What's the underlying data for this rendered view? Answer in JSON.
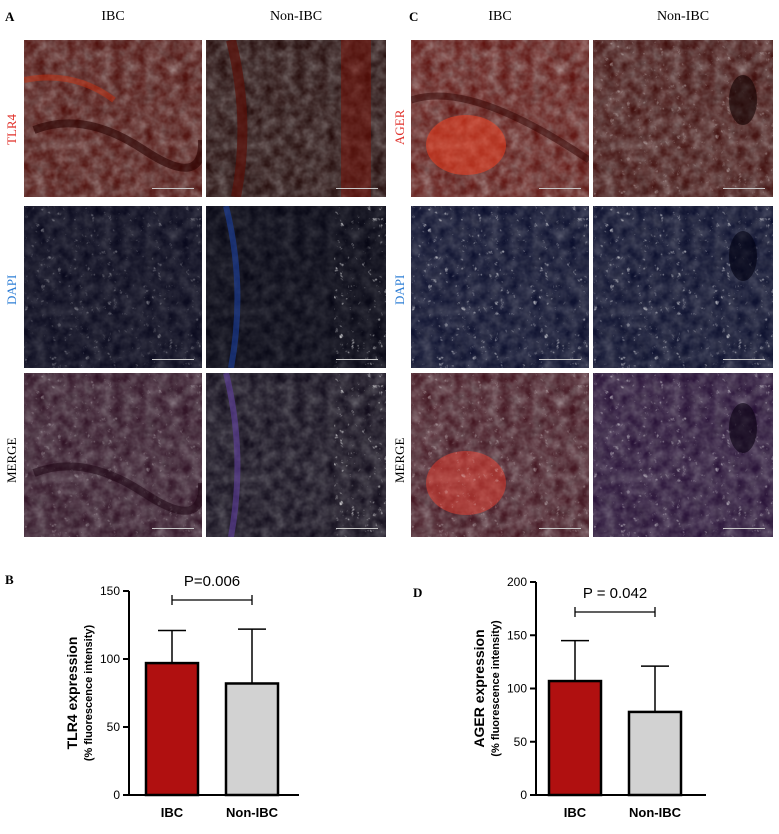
{
  "figure": {
    "panel_letters": {
      "A": "A",
      "B": "B",
      "C": "C",
      "D": "D"
    },
    "col_headers": {
      "left_ibc": "IBC",
      "left_nonibc": "Non-IBC",
      "right_ibc": "IBC",
      "right_nonibc": "Non-IBC"
    },
    "row_labels_left": {
      "marker": "TLR4",
      "dapi": "DAPI",
      "merge": "MERGE"
    },
    "row_labels_right": {
      "marker": "AGER",
      "dapi": "DAPI",
      "merge": "MERGE"
    },
    "colors": {
      "marker_label": "#e0302a",
      "dapi_label": "#2f7fd6",
      "merge_label": "#000000",
      "ibc_bar": "#b01010",
      "nonibc_bar": "#d2d2d2"
    }
  },
  "chart_data": [
    {
      "type": "bar",
      "panel": "B",
      "categories": [
        "IBC",
        "Non-IBC"
      ],
      "values": [
        97,
        82
      ],
      "errors_upper": [
        121,
        122
      ],
      "ylabel": "TLR4 expression",
      "ylabel2": "(% fluorescence intensity)",
      "ylim": [
        0,
        150
      ],
      "yticks": [
        0,
        50,
        100,
        150
      ],
      "annotation": "P=0.006",
      "colors": [
        "#b01010",
        "#d2d2d2"
      ]
    },
    {
      "type": "bar",
      "panel": "D",
      "categories": [
        "IBC",
        "Non-IBC"
      ],
      "values": [
        107,
        78
      ],
      "errors_upper": [
        145,
        121
      ],
      "ylabel": "AGER expression",
      "ylabel2": "(% fluorescence intensity)",
      "ylim": [
        0,
        200
      ],
      "yticks": [
        0,
        50,
        100,
        150,
        200
      ],
      "annotation": "P = 0.042",
      "colors": [
        "#b01010",
        "#d2d2d2"
      ]
    }
  ]
}
